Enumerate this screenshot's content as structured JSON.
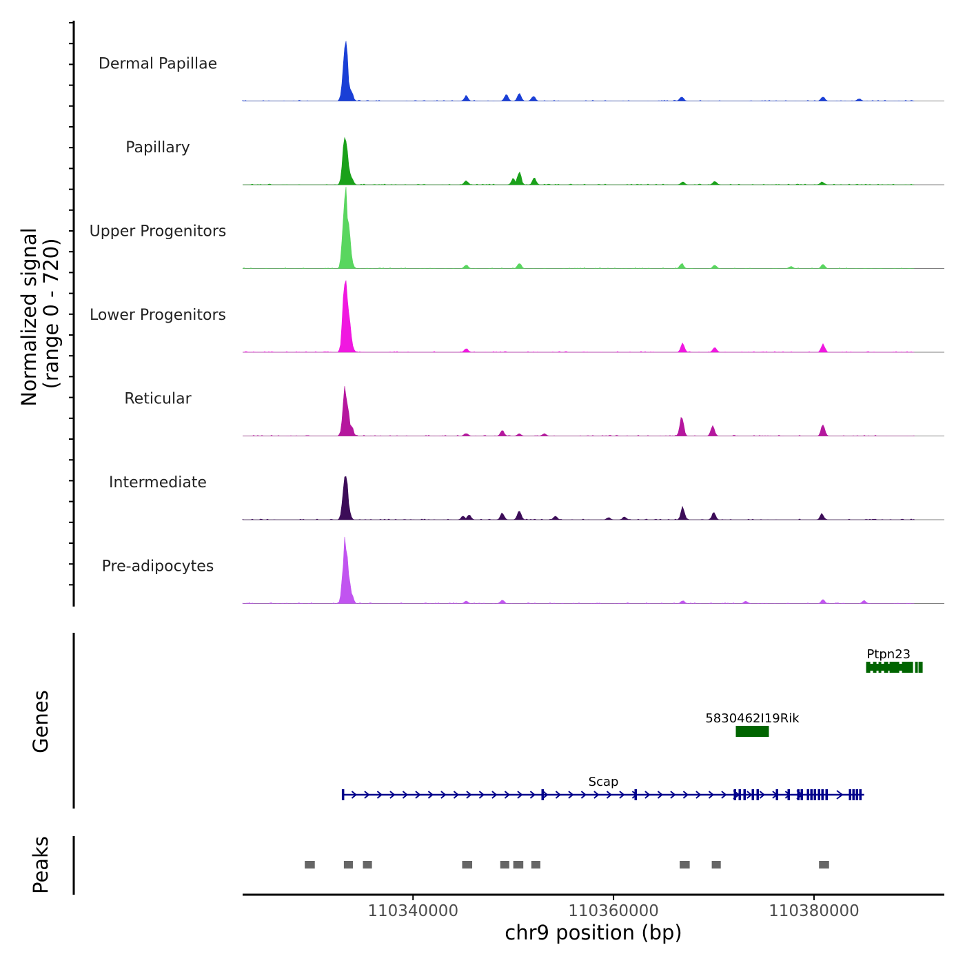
{
  "chart_data": {
    "type": "area",
    "title": "",
    "region": {
      "chrom": "chr9",
      "start": 110323000,
      "end": 110393000
    },
    "xlabel": "chr9 position (bp)",
    "x_ticks": [
      110340000,
      110360000,
      110380000
    ],
    "x_tick_labels": [
      "110340000",
      "110360000",
      "110380000"
    ],
    "coverage_ylabel_line1": "Normalized signal",
    "coverage_ylabel_line2": "(range 0 - 720)",
    "ylim": [
      0,
      720
    ],
    "genes_label": "Genes",
    "peaks_label": "Peaks",
    "series": [
      {
        "name": "Dermal Papillae",
        "color": "#1a3fd6",
        "peaks": [
          [
            110333250,
            85
          ],
          [
            110333550,
            30
          ],
          [
            110333850,
            12
          ],
          [
            110345300,
            7
          ],
          [
            110349300,
            9
          ],
          [
            110350600,
            10
          ],
          [
            110352000,
            7
          ],
          [
            110366800,
            6
          ],
          [
            110380900,
            6
          ],
          [
            110384500,
            3
          ]
        ]
      },
      {
        "name": "Papillary",
        "color": "#1aa11a",
        "peaks": [
          [
            110333250,
            72
          ],
          [
            110333550,
            25
          ],
          [
            110333850,
            10
          ],
          [
            110345300,
            6
          ],
          [
            110350000,
            9
          ],
          [
            110350600,
            19
          ],
          [
            110352100,
            9
          ],
          [
            110366900,
            4
          ],
          [
            110370100,
            5
          ],
          [
            110380800,
            4
          ]
        ]
      },
      {
        "name": "Upper Progenitors",
        "color": "#59d65f",
        "peaks": [
          [
            110333250,
            112
          ],
          [
            110333550,
            56
          ],
          [
            110333850,
            10
          ],
          [
            110345300,
            5
          ],
          [
            110350600,
            8
          ],
          [
            110366800,
            7
          ],
          [
            110370100,
            5
          ],
          [
            110377700,
            3
          ],
          [
            110380900,
            6
          ]
        ]
      },
      {
        "name": "Lower Progenitors",
        "color": "#f018e0",
        "peaks": [
          [
            110333250,
            108
          ],
          [
            110333550,
            60
          ],
          [
            110333850,
            12
          ],
          [
            110345300,
            5
          ],
          [
            110366900,
            13
          ],
          [
            110370100,
            7
          ],
          [
            110380900,
            12
          ]
        ]
      },
      {
        "name": "Reticular",
        "color": "#b5179e",
        "peaks": [
          [
            110333250,
            66
          ],
          [
            110333550,
            30
          ],
          [
            110333850,
            14
          ],
          [
            110345300,
            4
          ],
          [
            110348900,
            8
          ],
          [
            110350600,
            3
          ],
          [
            110353100,
            3
          ],
          [
            110366800,
            30
          ],
          [
            110369900,
            15
          ],
          [
            110380900,
            16
          ]
        ]
      },
      {
        "name": "Intermediate",
        "color": "#3c0c58",
        "peaks": [
          [
            110333250,
            66
          ],
          [
            110333550,
            18
          ],
          [
            110345000,
            5
          ],
          [
            110345600,
            7
          ],
          [
            110348900,
            9
          ],
          [
            110350600,
            14
          ],
          [
            110354200,
            5
          ],
          [
            110359500,
            3
          ],
          [
            110361100,
            4
          ],
          [
            110366900,
            17
          ],
          [
            110370000,
            10
          ],
          [
            110380800,
            8
          ]
        ]
      },
      {
        "name": "Pre-adipocytes",
        "color": "#c154f0",
        "peaks": [
          [
            110333250,
            90
          ],
          [
            110333550,
            42
          ],
          [
            110333850,
            14
          ],
          [
            110345300,
            3
          ],
          [
            110348900,
            5
          ],
          [
            110366900,
            4
          ],
          [
            110373200,
            3
          ],
          [
            110380900,
            5
          ],
          [
            110385000,
            4
          ]
        ]
      }
    ],
    "genes": [
      {
        "name": "Ptpn23",
        "start": 110385200,
        "end": 110389700,
        "strand": "+",
        "color": "#006400"
      },
      {
        "name": "5830462I19Rik",
        "start": 110372200,
        "end": 110375500,
        "strand": "-",
        "color": "#006400"
      },
      {
        "name": "Scap",
        "start": 110333000,
        "end": 110385000,
        "strand": "+",
        "color": "#00008b"
      }
    ],
    "peaks": [
      [
        110329200,
        110330200
      ],
      [
        110333100,
        110334000
      ],
      [
        110335000,
        110335900
      ],
      [
        110344900,
        110345900
      ],
      [
        110348700,
        110349600
      ],
      [
        110350000,
        110351000
      ],
      [
        110351800,
        110352700
      ],
      [
        110366600,
        110367600
      ],
      [
        110369800,
        110370700
      ],
      [
        110380500,
        110381500
      ]
    ]
  }
}
